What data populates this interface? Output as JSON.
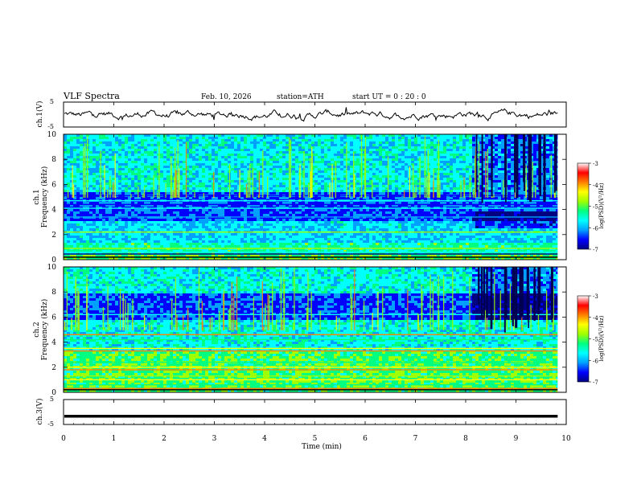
{
  "header": {
    "title": "VLF  Spectra",
    "date": "Feb. 10, 2026",
    "station": "station=ATH",
    "start_ut": "start  UT  =   0  : 20 : 0"
  },
  "colorbar": {
    "label": "log(PSD)(V²/Hz)",
    "ticks": [
      "-3",
      "-4",
      "-5",
      "-6",
      "-7"
    ],
    "colors": [
      "#000080",
      "#0000ff",
      "#00a0ff",
      "#00ffff",
      "#00ff80",
      "#a0ff00",
      "#ffff00",
      "#ff8000",
      "#ff0000",
      "#ffffff"
    ]
  },
  "chart_data": [
    {
      "type": "line",
      "panel": "ch1-voltage",
      "ylabel": "ch.1(V)",
      "ylim": [
        -5,
        5
      ],
      "ytick_labels": [
        "5",
        "-5"
      ],
      "xlim": [
        0,
        10
      ],
      "baseline_v": 0,
      "series_color": "#000000"
    },
    {
      "type": "heatmap",
      "panel": "ch1-spectrogram",
      "ylabel": "ch.1\nFrequency  (kHz)",
      "ylim": [
        0,
        10
      ],
      "ytick_labels": [
        "10",
        "8",
        "6",
        "4",
        "2",
        "0"
      ],
      "xlim": [
        0,
        10
      ],
      "data_end_min": 9.83,
      "z_label": "log(PSD)(V²/Hz)",
      "zlim": [
        -7,
        -3
      ]
    },
    {
      "type": "heatmap",
      "panel": "ch2-spectrogram",
      "ylabel": "ch.2\nFrequency  (kHz)",
      "ylim": [
        0,
        10
      ],
      "ytick_labels": [
        "10",
        "8",
        "6",
        "4",
        "2",
        "0"
      ],
      "xlim": [
        0,
        10
      ],
      "data_end_min": 9.83,
      "z_label": "log(PSD)(V²/Hz)",
      "zlim": [
        -7,
        -3
      ]
    },
    {
      "type": "line",
      "panel": "ch3-voltage",
      "ylabel": "ch.3(V)",
      "ylim": [
        -5,
        5
      ],
      "ytick_labels": [
        "5",
        "-5"
      ],
      "xlim": [
        0,
        10
      ],
      "baseline_v": -1.7,
      "series_color": "#000000"
    }
  ],
  "xaxis": {
    "label": "Time  (min)",
    "tick_labels": [
      "0",
      "1",
      "2",
      "3",
      "4",
      "5",
      "6",
      "7",
      "8",
      "9",
      "10"
    ]
  }
}
